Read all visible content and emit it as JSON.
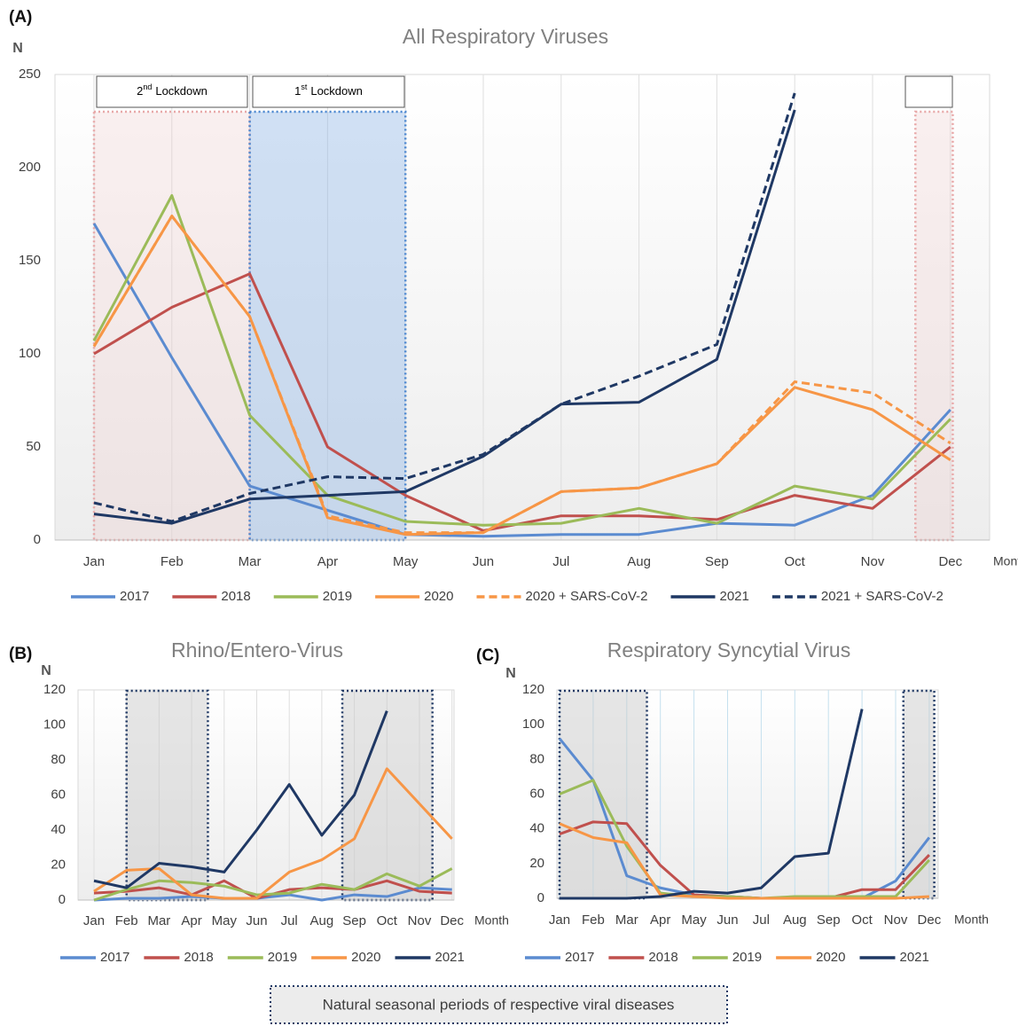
{
  "chart_data": [
    {
      "type": "line",
      "panel_label": "(A)",
      "title": "All Respiratory Viruses",
      "y_label": "N",
      "x_label": "Month",
      "categories": [
        "Jan",
        "Feb",
        "Mar",
        "Apr",
        "May",
        "Jun",
        "Jul",
        "Aug",
        "Sep",
        "Oct",
        "Nov",
        "Dec"
      ],
      "ylim": [
        0,
        250
      ],
      "yticks": [
        0,
        50,
        100,
        150,
        200,
        250
      ],
      "grid": false,
      "annotations": [
        {
          "number": "2",
          "suffix": "nd",
          "text": "Lockdown"
        },
        {
          "number": "1",
          "suffix": "st",
          "text": "Lockdown"
        }
      ],
      "series": [
        {
          "name": "2017",
          "color": "#5b8bd0",
          "dashed": false,
          "values": [
            170,
            98,
            29,
            16,
            3,
            2,
            3,
            3,
            9,
            8,
            24,
            70
          ]
        },
        {
          "name": "2018",
          "color": "#c0504d",
          "dashed": false,
          "values": [
            100,
            125,
            143,
            50,
            24,
            5,
            13,
            13,
            11,
            24,
            17,
            50
          ]
        },
        {
          "name": "2019",
          "color": "#9bbb59",
          "dashed": false,
          "values": [
            107,
            185,
            67,
            24,
            10,
            8,
            9,
            17,
            9,
            29,
            22,
            65
          ]
        },
        {
          "name": "2020",
          "color": "#f79646",
          "dashed": false,
          "values": [
            104,
            174,
            120,
            12,
            3,
            4,
            26,
            28,
            41,
            82,
            70,
            43
          ]
        },
        {
          "name": "2020 + SARS-CoV-2",
          "color": "#f79646",
          "dashed": true,
          "values": [
            104,
            174,
            120,
            13,
            4,
            4,
            26,
            28,
            41,
            85,
            79,
            52
          ]
        },
        {
          "name": "2021",
          "color": "#1f3864",
          "dashed": false,
          "values": [
            14,
            9,
            22,
            24,
            26,
            45,
            73,
            74,
            97,
            231,
            null,
            null
          ]
        },
        {
          "name": "2021 + SARS-CoV-2",
          "color": "#1f3864",
          "dashed": true,
          "values": [
            20,
            10,
            25,
            34,
            33,
            46,
            73,
            88,
            105,
            240,
            null,
            null
          ]
        }
      ]
    },
    {
      "type": "line",
      "panel_label": "(B)",
      "title": "Rhino/Entero-Virus",
      "y_label": "N",
      "x_label": "Month",
      "categories": [
        "Jan",
        "Feb",
        "Mar",
        "Apr",
        "May",
        "Jun",
        "Jul",
        "Aug",
        "Sep",
        "Oct",
        "Nov",
        "Dec"
      ],
      "ylim": [
        0,
        120
      ],
      "yticks": [
        0,
        20,
        40,
        60,
        80,
        100,
        120
      ],
      "grid": false,
      "series": [
        {
          "name": "2017",
          "color": "#5b8bd0",
          "dashed": false,
          "values": [
            0,
            1,
            1,
            2,
            1,
            1,
            3,
            0,
            3,
            2,
            7,
            6
          ]
        },
        {
          "name": "2018",
          "color": "#c0504d",
          "dashed": false,
          "values": [
            4,
            5,
            7,
            3,
            11,
            1,
            6,
            7,
            6,
            11,
            5,
            4
          ]
        },
        {
          "name": "2019",
          "color": "#9bbb59",
          "dashed": false,
          "values": [
            0,
            6,
            11,
            10,
            8,
            3,
            4,
            9,
            6,
            15,
            8,
            18
          ]
        },
        {
          "name": "2020",
          "color": "#f79646",
          "dashed": false,
          "values": [
            5,
            17,
            18,
            3,
            1,
            1,
            16,
            23,
            35,
            75,
            55,
            35
          ]
        },
        {
          "name": "2021",
          "color": "#1f3864",
          "dashed": false,
          "values": [
            11,
            7,
            21,
            19,
            16,
            40,
            66,
            37,
            60,
            108,
            null,
            null
          ]
        }
      ]
    },
    {
      "type": "line",
      "panel_label": "(C)",
      "title": "Respiratory Syncytial Virus",
      "y_label": "N",
      "x_label": "Month",
      "categories": [
        "Jan",
        "Feb",
        "Mar",
        "Apr",
        "May",
        "Jun",
        "Jul",
        "Aug",
        "Sep",
        "Oct",
        "Nov",
        "Dec"
      ],
      "ylim": [
        0,
        120
      ],
      "yticks": [
        0,
        20,
        40,
        60,
        80,
        100,
        120
      ],
      "grid": false,
      "series": [
        {
          "name": "2017",
          "color": "#5b8bd0",
          "dashed": false,
          "values": [
            92,
            68,
            13,
            6,
            2,
            1,
            0,
            0,
            0,
            0,
            10,
            35
          ]
        },
        {
          "name": "2018",
          "color": "#c0504d",
          "dashed": false,
          "values": [
            37,
            44,
            43,
            19,
            2,
            1,
            0,
            0,
            0,
            5,
            5,
            25
          ]
        },
        {
          "name": "2019",
          "color": "#9bbb59",
          "dashed": false,
          "values": [
            60,
            68,
            30,
            3,
            1,
            1,
            0,
            1,
            1,
            1,
            1,
            22
          ]
        },
        {
          "name": "2020",
          "color": "#f79646",
          "dashed": false,
          "values": [
            43,
            35,
            32,
            2,
            1,
            0,
            0,
            0,
            0,
            0,
            0,
            1
          ]
        },
        {
          "name": "2021",
          "color": "#1f3864",
          "dashed": false,
          "values": [
            0,
            0,
            0,
            1,
            4,
            3,
            6,
            24,
            26,
            109,
            null,
            null
          ]
        }
      ]
    }
  ],
  "footnote": "Natural seasonal periods of respective viral diseases"
}
